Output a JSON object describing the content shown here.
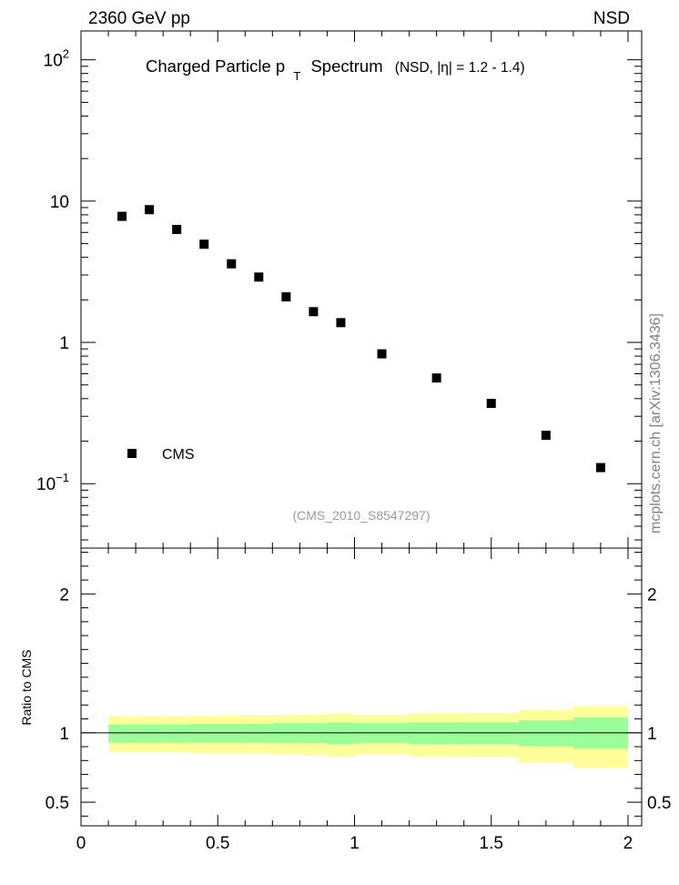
{
  "header": {
    "left_label": "2360 GeV pp",
    "right_label": "NSD",
    "side_label": "mcplots.cern.ch [arXiv:1306.3436]"
  },
  "chart_data": [
    {
      "type": "scatter",
      "title_main": "Charged Particle p",
      "title_sub": "T",
      "title_rest": "Spectrum",
      "title_note": "(NSD, |η| = 1.2 - 1.4)",
      "watermark": "(CMS_2010_S8547297)",
      "x_range": [
        0,
        2.05
      ],
      "y_scale": "log",
      "y_range": [
        0.035,
        160
      ],
      "y_ticks_major": [
        {
          "value": 0.1,
          "base": "10",
          "exp": "−1"
        },
        {
          "value": 1,
          "label": "1"
        },
        {
          "value": 10,
          "label": "10"
        },
        {
          "value": 100,
          "base": "10",
          "exp": "2"
        }
      ],
      "legend": [
        {
          "name": "CMS",
          "marker": "square",
          "color": "#000000"
        }
      ],
      "series": [
        {
          "name": "CMS",
          "x": [
            0.15,
            0.25,
            0.35,
            0.45,
            0.55,
            0.65,
            0.75,
            0.85,
            0.95,
            1.1,
            1.3,
            1.5,
            1.7,
            1.9
          ],
          "y": [
            7.8,
            8.7,
            6.3,
            4.95,
            3.6,
            2.9,
            2.1,
            1.65,
            1.38,
            0.83,
            0.56,
            0.37,
            0.22,
            0.13
          ]
        }
      ]
    },
    {
      "type": "area",
      "ylabel": "Ratio to CMS",
      "x_range": [
        0,
        2.05
      ],
      "y_range": [
        0.33,
        2.33
      ],
      "x_ticks": [
        {
          "value": 0,
          "label": "0"
        },
        {
          "value": 0.5,
          "label": "0.5"
        },
        {
          "value": 1,
          "label": "1"
        },
        {
          "value": 1.5,
          "label": "1.5"
        },
        {
          "value": 2,
          "label": "2"
        }
      ],
      "y_ticks": [
        {
          "value": 0.5,
          "label": "0.5"
        },
        {
          "value": 1,
          "label": "1"
        },
        {
          "value": 2,
          "label": "2"
        }
      ],
      "reference_line": 1,
      "colors": {
        "outer_band": "#ffff99",
        "inner_band": "#99ff99",
        "line": "#000000"
      },
      "bins": [
        {
          "x0": 0.1,
          "x1": 0.2,
          "inner": [
            0.93,
            1.06
          ],
          "outer": [
            0.86,
            1.12
          ]
        },
        {
          "x0": 0.2,
          "x1": 0.3,
          "inner": [
            0.93,
            1.06
          ],
          "outer": [
            0.86,
            1.12
          ]
        },
        {
          "x0": 0.3,
          "x1": 0.4,
          "inner": [
            0.93,
            1.06
          ],
          "outer": [
            0.86,
            1.12
          ]
        },
        {
          "x0": 0.4,
          "x1": 0.5,
          "inner": [
            0.93,
            1.065
          ],
          "outer": [
            0.855,
            1.125
          ]
        },
        {
          "x0": 0.5,
          "x1": 0.6,
          "inner": [
            0.93,
            1.065
          ],
          "outer": [
            0.855,
            1.125
          ]
        },
        {
          "x0": 0.6,
          "x1": 0.7,
          "inner": [
            0.93,
            1.065
          ],
          "outer": [
            0.85,
            1.128
          ]
        },
        {
          "x0": 0.7,
          "x1": 0.8,
          "inner": [
            0.925,
            1.07
          ],
          "outer": [
            0.845,
            1.13
          ]
        },
        {
          "x0": 0.8,
          "x1": 0.9,
          "inner": [
            0.925,
            1.07
          ],
          "outer": [
            0.84,
            1.133
          ]
        },
        {
          "x0": 0.9,
          "x1": 1.0,
          "inner": [
            0.92,
            1.075
          ],
          "outer": [
            0.83,
            1.138
          ]
        },
        {
          "x0": 1.0,
          "x1": 1.2,
          "inner": [
            0.925,
            1.07
          ],
          "outer": [
            0.845,
            1.13
          ]
        },
        {
          "x0": 1.2,
          "x1": 1.4,
          "inner": [
            0.92,
            1.075
          ],
          "outer": [
            0.83,
            1.14
          ]
        },
        {
          "x0": 1.4,
          "x1": 1.6,
          "inner": [
            0.92,
            1.075
          ],
          "outer": [
            0.825,
            1.143
          ]
        },
        {
          "x0": 1.6,
          "x1": 1.8,
          "inner": [
            0.905,
            1.09
          ],
          "outer": [
            0.785,
            1.165
          ]
        },
        {
          "x0": 1.8,
          "x1": 2.0,
          "inner": [
            0.885,
            1.11
          ],
          "outer": [
            0.745,
            1.19
          ]
        }
      ]
    }
  ]
}
